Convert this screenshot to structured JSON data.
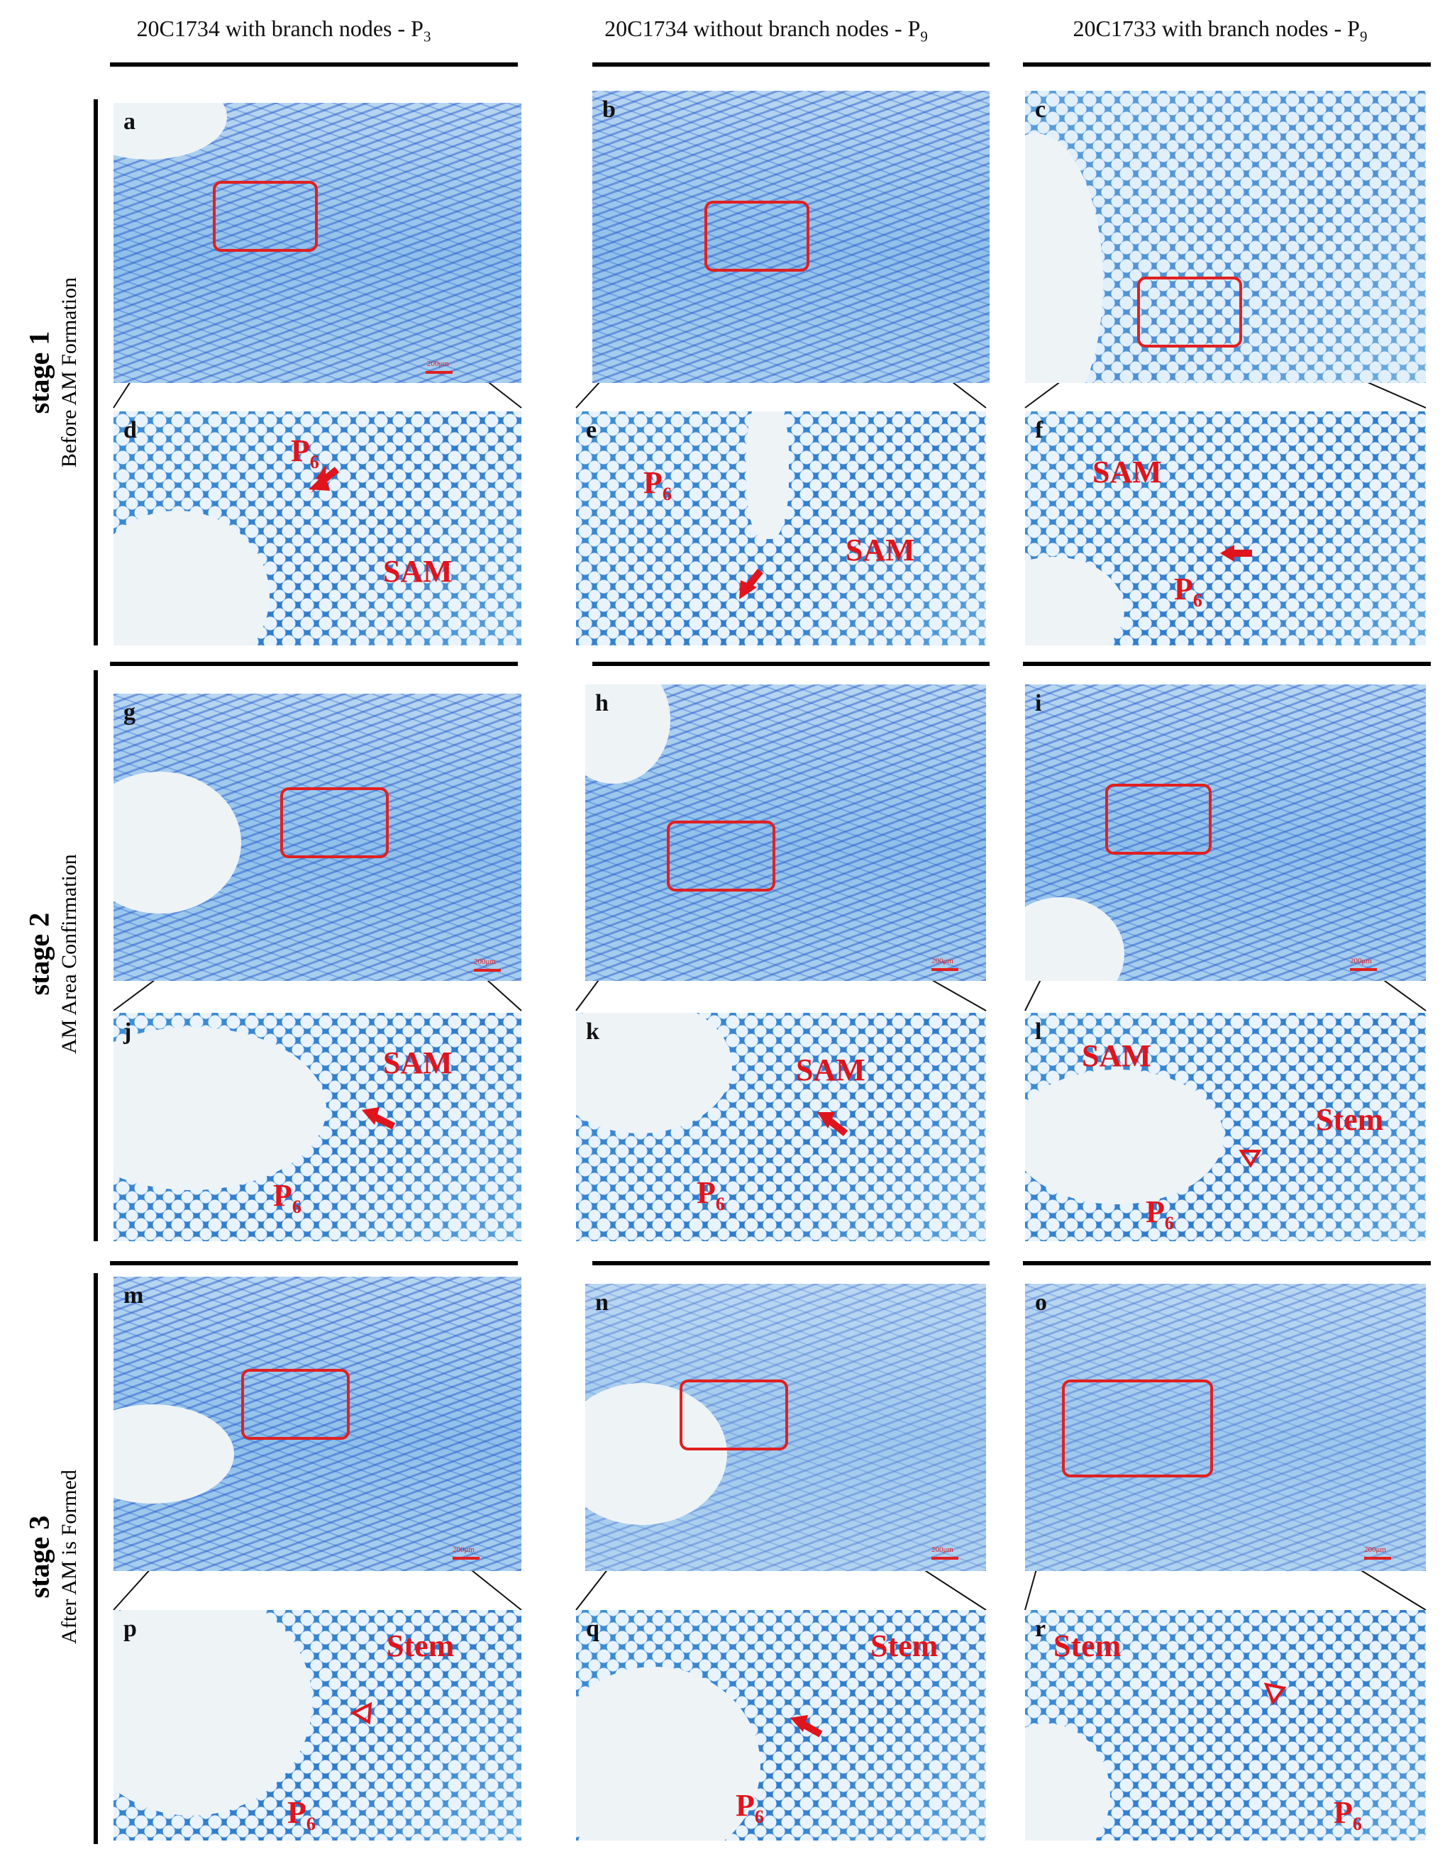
{
  "columns": [
    {
      "title_main": "20C1734 with branch nodes - P",
      "title_sub": "3"
    },
    {
      "title_main": "20C1734 without branch nodes - P",
      "title_sub": "9"
    },
    {
      "title_main": "20C1733 with branch nodes - P",
      "title_sub": "9"
    }
  ],
  "stages": [
    {
      "label": "stage 1",
      "description": "Before AM Formation"
    },
    {
      "label": "stage 2",
      "description": "AM Area Confirmation"
    },
    {
      "label": "stage 3",
      "description": "After AM is Formed"
    }
  ],
  "panels": {
    "a": {
      "letter": "a",
      "scale": "200μm"
    },
    "b": {
      "letter": "b"
    },
    "c": {
      "letter": "c"
    },
    "d": {
      "letter": "d",
      "labels": [
        "P",
        "SAM"
      ],
      "sub": "6"
    },
    "e": {
      "letter": "e",
      "labels": [
        "P",
        "SAM"
      ],
      "sub": "6"
    },
    "f": {
      "letter": "f",
      "labels": [
        "SAM",
        "P"
      ],
      "sub": "6"
    },
    "g": {
      "letter": "g",
      "scale": "200μm"
    },
    "h": {
      "letter": "h",
      "scale": "200μm"
    },
    "i": {
      "letter": "i",
      "scale": "200μm"
    },
    "j": {
      "letter": "j",
      "labels": [
        "SAM",
        "P"
      ],
      "sub": "6"
    },
    "k": {
      "letter": "k",
      "labels": [
        "SAM",
        "P"
      ],
      "sub": "6"
    },
    "l": {
      "letter": "l",
      "labels": [
        "SAM",
        "Stem",
        "P"
      ],
      "sub": "6"
    },
    "m": {
      "letter": "m",
      "scale": "200μm"
    },
    "n": {
      "letter": "n",
      "scale": "200μm"
    },
    "o": {
      "letter": "o",
      "scale": "200μm"
    },
    "p": {
      "letter": "p",
      "labels": [
        "Stem",
        "P"
      ],
      "sub": "6"
    },
    "q": {
      "letter": "q",
      "labels": [
        "Stem",
        "P"
      ],
      "sub": "6"
    },
    "r": {
      "letter": "r",
      "labels": [
        "Stem",
        "P"
      ],
      "sub": "6"
    }
  },
  "colors": {
    "label_red": "#e0141c",
    "roi_red": "#e02020",
    "stain_blue": "#2f7bcc"
  }
}
